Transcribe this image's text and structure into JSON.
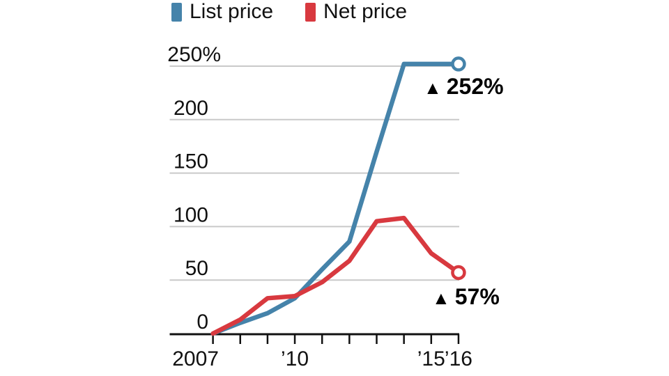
{
  "chart_data": {
    "type": "line",
    "x": [
      2007,
      2008,
      2009,
      2010,
      2011,
      2012,
      2013,
      2014,
      2015,
      2016
    ],
    "series": [
      {
        "name": "List price",
        "color": "#4583aa",
        "endpoint": "open-circle",
        "values": [
          0,
          10,
          19,
          33,
          60,
          86,
          170,
          252,
          252,
          252
        ],
        "end_value_label": "252%"
      },
      {
        "name": "Net price",
        "color": "#d8393f",
        "endpoint": "open-circle",
        "values": [
          0,
          13,
          33,
          35,
          48,
          68,
          105,
          108,
          75,
          57
        ],
        "end_value_label": "57%"
      }
    ],
    "ylim": [
      0,
      260
    ],
    "yticks": [
      {
        "value": 0,
        "label": "0"
      },
      {
        "value": 50,
        "label": "50"
      },
      {
        "value": 100,
        "label": "100"
      },
      {
        "value": 150,
        "label": "150"
      },
      {
        "value": 200,
        "label": "200"
      },
      {
        "value": 250,
        "label": "250%"
      }
    ],
    "xticks": [
      2007,
      2008,
      2009,
      2010,
      2011,
      2012,
      2013,
      2014,
      2015,
      2016
    ],
    "xticklabels": [
      {
        "year": 2007,
        "label": "2007"
      },
      {
        "year": 2010,
        "label": "’10"
      },
      {
        "year": 2015,
        "label": "’15"
      },
      {
        "year": 2016,
        "label": "’16"
      }
    ],
    "grid": "horizontal",
    "legend_position": "top"
  },
  "legend": {
    "items": [
      {
        "label": "List price",
        "color": "#4583aa"
      },
      {
        "label": "Net price",
        "color": "#d8393f"
      }
    ]
  },
  "annotations": [
    {
      "marker": "▲",
      "value": "252%",
      "series": "List price"
    },
    {
      "marker": "▲",
      "value": "57%",
      "series": "Net price"
    }
  ],
  "colors": {
    "grid": "#c9c9c9",
    "axis": "#111111",
    "text": "#111111",
    "background": "#ffffff"
  }
}
